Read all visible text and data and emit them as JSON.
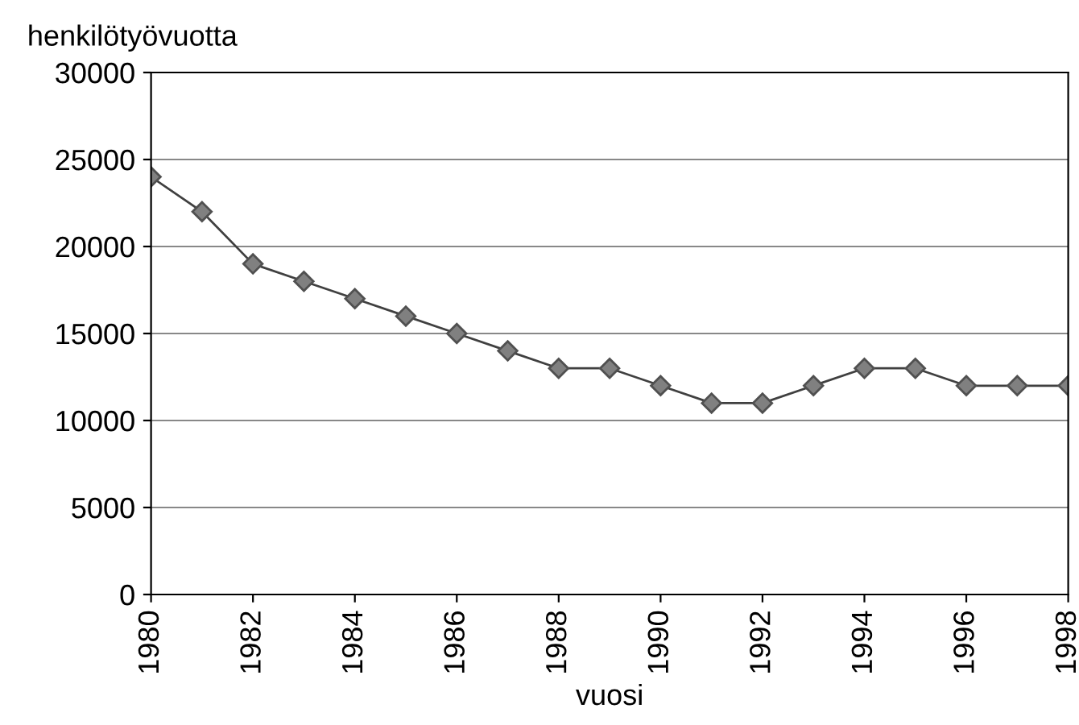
{
  "chart_data": {
    "type": "line",
    "ylabel": "henkilötyövuotta",
    "xlabel": "vuosi",
    "x": [
      1980,
      1981,
      1982,
      1983,
      1984,
      1985,
      1986,
      1987,
      1988,
      1989,
      1990,
      1991,
      1992,
      1993,
      1994,
      1995,
      1996,
      1997,
      1998
    ],
    "series": [
      {
        "color": "#808080",
        "values": [
          24000,
          22000,
          19000,
          18000,
          17000,
          16000,
          15000,
          14000,
          13000,
          13000,
          12000,
          11000,
          11000,
          12000,
          13000,
          13000,
          12000,
          12000,
          12000
        ]
      }
    ],
    "xlim": [
      1980,
      1998
    ],
    "xticks": [
      1980,
      1982,
      1984,
      1986,
      1988,
      1990,
      1992,
      1994,
      1996,
      1998
    ],
    "ylim": [
      0,
      30000
    ],
    "yticks": [
      0,
      5000,
      10000,
      15000,
      20000,
      25000,
      30000
    ],
    "grid": "y",
    "marker": "diamond",
    "line_style": "solid",
    "legend": false
  }
}
